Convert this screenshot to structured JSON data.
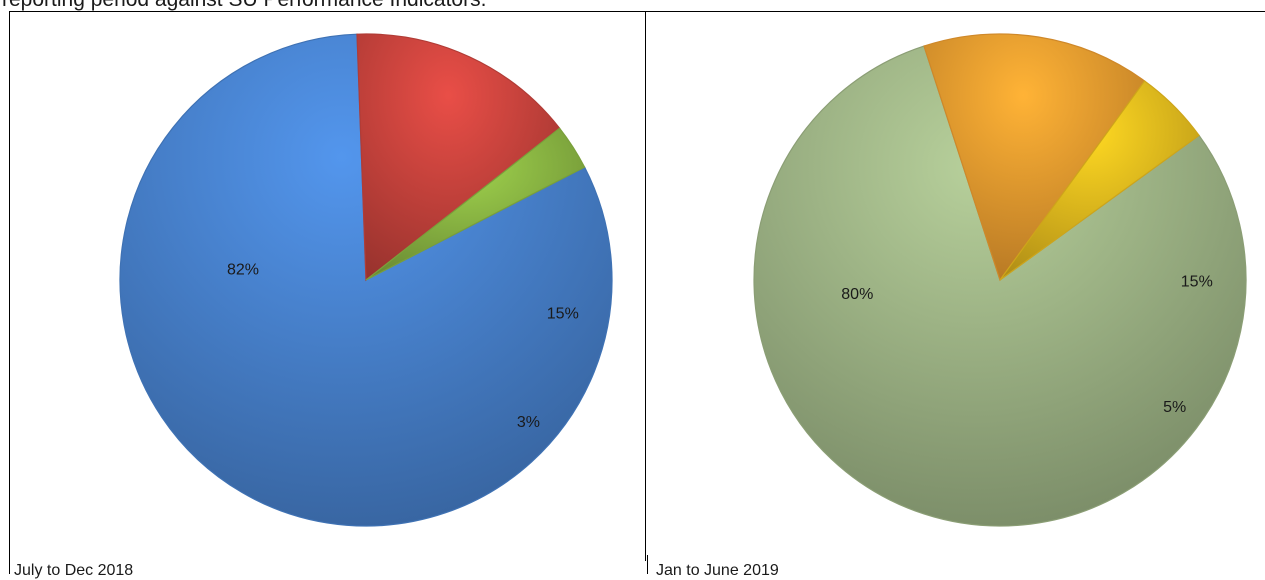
{
  "header": {
    "text": "reporting period against SU Performance Indicators."
  },
  "chart_data": [
    {
      "type": "pie",
      "title": "",
      "caption": "July to Dec 2018",
      "slices": [
        {
          "label": "82%",
          "value": 82,
          "color": "#4a86d4"
        },
        {
          "label": "15%",
          "value": 15,
          "color": "#d0463f"
        },
        {
          "label": "3%",
          "value": 3,
          "color": "#8fbc45"
        }
      ]
    },
    {
      "type": "pie",
      "title": "",
      "caption": "Jan to June 2019",
      "slices": [
        {
          "label": "80%",
          "value": 80,
          "color": "#a3ba8a"
        },
        {
          "label": "15%",
          "value": 15,
          "color": "#f4a030"
        },
        {
          "label": "5%",
          "value": 5,
          "color": "#f2c21e"
        }
      ]
    }
  ]
}
